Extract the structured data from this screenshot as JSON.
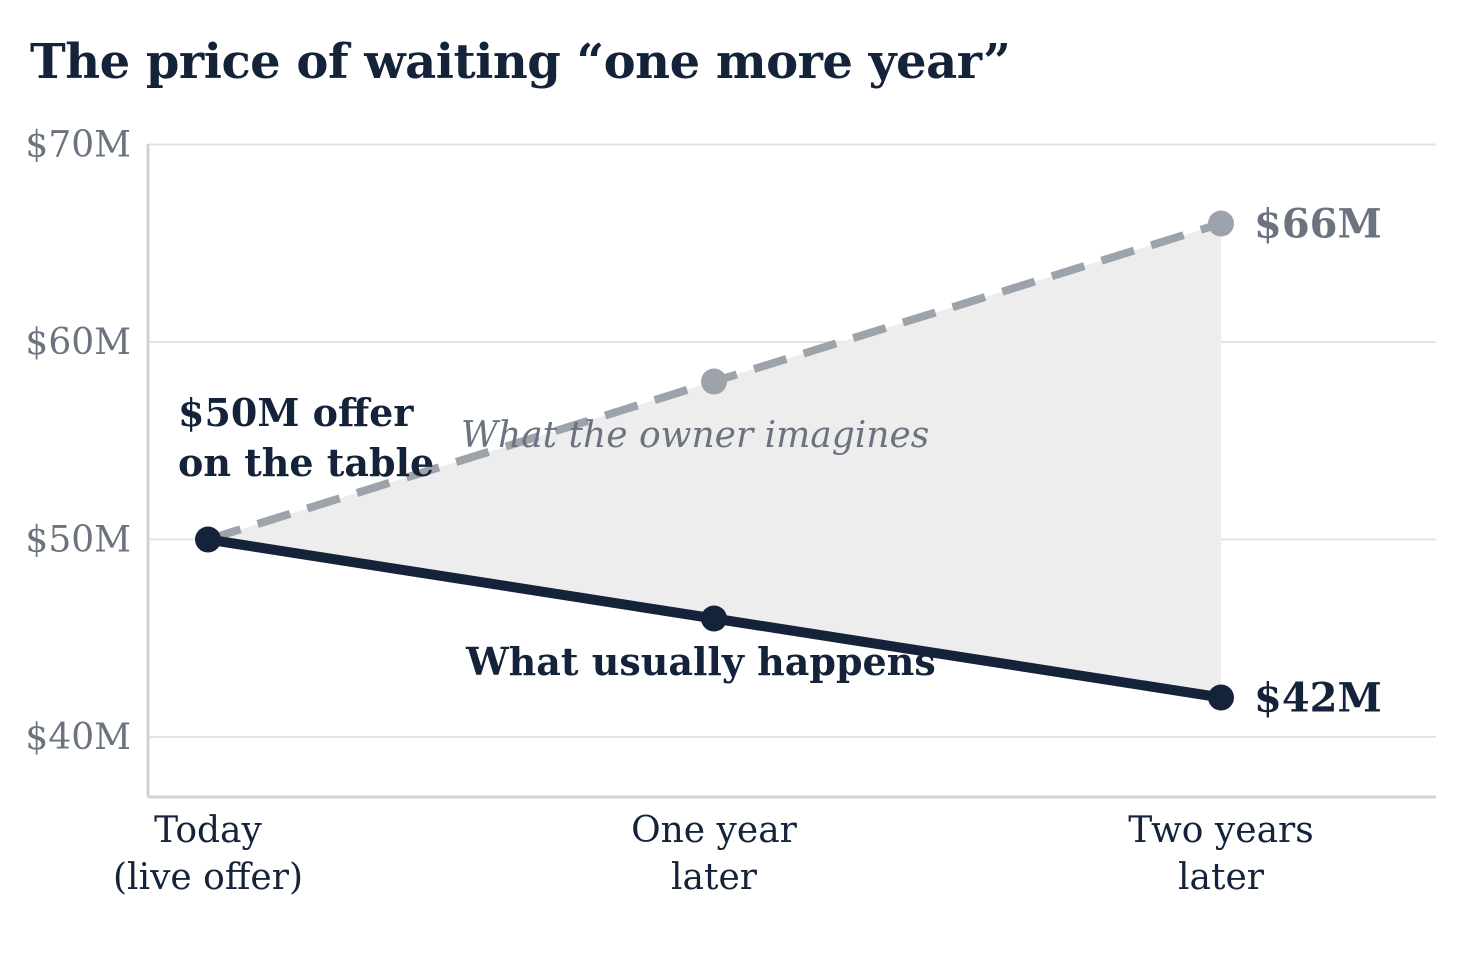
{
  "chart_data": {
    "type": "line",
    "title": "The price of waiting “one more year”",
    "categories": [
      "Today\n(live offer)",
      "One year\nlater",
      "Two years\nlater"
    ],
    "ylim": [
      37,
      70
    ],
    "yticks": [
      40,
      50,
      60,
      70
    ],
    "ytick_labels": [
      "$40M",
      "$50M",
      "$60M",
      "$70M"
    ],
    "grid": true,
    "series": [
      {
        "key": "imagined",
        "values": [
          50,
          58,
          66
        ],
        "color": "#9ca3aa",
        "style": "dashed",
        "end_label": "$66M",
        "end_label_color": "#6b7280",
        "annotation": "What the owner imagines"
      },
      {
        "key": "actual",
        "values": [
          50,
          46,
          42
        ],
        "color": "#14223a",
        "style": "solid",
        "end_label": "$42M",
        "end_label_color": "#14223a",
        "annotation": "What usually happens"
      }
    ],
    "start_annotation": [
      "$50M offer",
      "on the table"
    ],
    "shaded_gap_color": "#ededed"
  }
}
